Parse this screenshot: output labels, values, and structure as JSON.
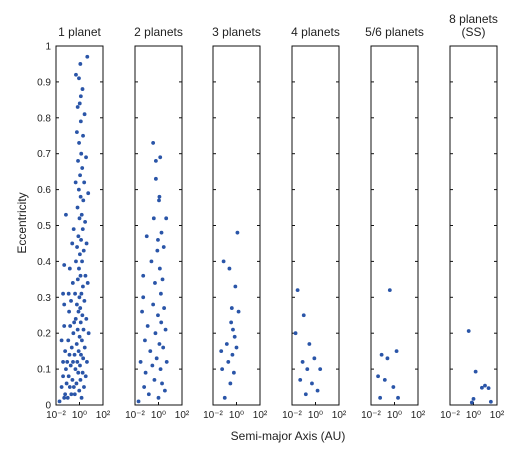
{
  "chart_data": {
    "type": "scatter",
    "ylabel": "Eccentricity",
    "xlabel": "Semi-major Axis (AU)",
    "x_scale": "log",
    "xlim": [
      0.01,
      100
    ],
    "ylim": [
      0,
      1
    ],
    "x_tick_labels": [
      "10⁻²",
      "10⁰",
      "10²"
    ],
    "y_ticks": [
      0,
      0.1,
      0.2,
      0.3,
      0.4,
      0.5,
      0.6,
      0.7,
      0.8,
      0.9,
      1
    ],
    "y_tick_labels": [
      "0",
      "0.1",
      "0.2",
      "0.3",
      "0.4",
      "0.5",
      "0.6",
      "0.7",
      "0.8",
      "0.9",
      "1"
    ],
    "marker_color": "#2a55a8",
    "panels": [
      {
        "title": [
          "1 planet"
        ],
        "points": [
          [
            0.02,
            0.01
          ],
          [
            0.03,
            0.05
          ],
          [
            0.04,
            0.08
          ],
          [
            0.05,
            0.02
          ],
          [
            0.04,
            0.12
          ],
          [
            0.03,
            0.18
          ],
          [
            0.05,
            0.22
          ],
          [
            0.06,
            0.03
          ],
          [
            0.07,
            0.1
          ],
          [
            0.05,
            0.28
          ],
          [
            0.04,
            0.31
          ],
          [
            0.06,
            0.15
          ],
          [
            0.08,
            0.06
          ],
          [
            0.09,
            0.12
          ],
          [
            0.05,
            0.39
          ],
          [
            0.07,
            0.53
          ],
          [
            0.1,
            0.02
          ],
          [
            0.12,
            0.08
          ],
          [
            0.11,
            0.18
          ],
          [
            0.13,
            0.26
          ],
          [
            0.12,
            0.31
          ],
          [
            0.15,
            0.05
          ],
          [
            0.14,
            0.14
          ],
          [
            0.16,
            0.22
          ],
          [
            0.15,
            0.38
          ],
          [
            0.18,
            0.11
          ],
          [
            0.2,
            0.03
          ],
          [
            0.19,
            0.29
          ],
          [
            0.22,
            0.16
          ],
          [
            0.25,
            0.07
          ],
          [
            0.24,
            0.45
          ],
          [
            0.28,
            0.12
          ],
          [
            0.3,
            0.2
          ],
          [
            0.27,
            0.34
          ],
          [
            0.33,
            0.05
          ],
          [
            0.35,
            0.23
          ],
          [
            0.32,
            0.49
          ],
          [
            0.38,
            0.14
          ],
          [
            0.4,
            0.03
          ],
          [
            0.42,
            0.31
          ],
          [
            0.45,
            0.1
          ],
          [
            0.48,
            0.24
          ],
          [
            0.5,
            0.4
          ],
          [
            0.47,
            0.62
          ],
          [
            0.55,
            0.06
          ],
          [
            0.58,
            0.17
          ],
          [
            0.6,
            0.28
          ],
          [
            0.62,
            0.44
          ],
          [
            0.65,
            0.12
          ],
          [
            0.68,
            0.55
          ],
          [
            0.7,
            0.21
          ],
          [
            0.72,
            0.35
          ],
          [
            0.75,
            0.68
          ],
          [
            0.78,
            0.09
          ],
          [
            0.8,
            0.47
          ],
          [
            0.82,
            0.26
          ],
          [
            0.85,
            0.15
          ],
          [
            0.88,
            0.6
          ],
          [
            0.9,
            0.38
          ],
          [
            0.92,
            0.73
          ],
          [
            0.95,
            0.04
          ],
          [
            0.98,
            0.3
          ],
          [
            1.0,
            0.52
          ],
          [
            1.02,
            0.19
          ],
          [
            1.05,
            0.84
          ],
          [
            1.08,
            0.42
          ],
          [
            1.1,
            0.11
          ],
          [
            1.12,
            0.64
          ],
          [
            1.15,
            0.27
          ],
          [
            1.18,
            0.95
          ],
          [
            1.2,
            0.07
          ],
          [
            1.22,
            0.36
          ],
          [
            1.25,
            0.58
          ],
          [
            1.28,
            0.23
          ],
          [
            1.3,
            0.79
          ],
          [
            1.33,
            0.14
          ],
          [
            1.36,
            0.46
          ],
          [
            1.4,
            0.7
          ],
          [
            1.45,
            0.31
          ],
          [
            1.5,
            0.02
          ],
          [
            1.55,
            0.53
          ],
          [
            1.6,
            0.18
          ],
          [
            1.65,
            0.4
          ],
          [
            1.7,
            0.66
          ],
          [
            1.75,
            0.25
          ],
          [
            1.8,
            0.88
          ],
          [
            1.85,
            0.09
          ],
          [
            1.9,
            0.49
          ],
          [
            1.95,
            0.33
          ],
          [
            2.0,
            0.75
          ],
          [
            2.05,
            0.13
          ],
          [
            2.1,
            0.57
          ],
          [
            2.2,
            0.21
          ],
          [
            2.3,
            0.43
          ],
          [
            2.4,
            0.05
          ],
          [
            2.5,
            0.62
          ],
          [
            2.6,
            0.29
          ],
          [
            2.7,
            0.81
          ],
          [
            2.8,
            0.16
          ],
          [
            3.0,
            0.51
          ],
          [
            3.2,
            0.36
          ],
          [
            3.4,
            0.08
          ],
          [
            3.6,
            0.69
          ],
          [
            3.8,
            0.24
          ],
          [
            4.0,
            0.45
          ],
          [
            4.3,
            0.12
          ],
          [
            4.6,
            0.97
          ],
          [
            5.0,
            0.34
          ],
          [
            5.5,
            0.59
          ],
          [
            6.0,
            0.2
          ],
          [
            0.5,
            0.92
          ],
          [
            0.7,
            0.83
          ],
          [
            0.9,
            0.91
          ],
          [
            1.3,
            0.86
          ],
          [
            0.6,
            0.76
          ]
        ]
      },
      {
        "title": [
          "2 planets"
        ],
        "points": [
          [
            0.02,
            0.01
          ],
          [
            0.03,
            0.12
          ],
          [
            0.04,
            0.26
          ],
          [
            0.05,
            0.36
          ],
          [
            0.06,
            0.05
          ],
          [
            0.07,
            0.18
          ],
          [
            0.05,
            0.3
          ],
          [
            0.08,
            0.09
          ],
          [
            0.1,
            0.47
          ],
          [
            0.12,
            0.22
          ],
          [
            0.15,
            0.03
          ],
          [
            0.2,
            0.15
          ],
          [
            0.25,
            0.4
          ],
          [
            0.3,
            0.11
          ],
          [
            0.35,
            0.28
          ],
          [
            0.4,
            0.52
          ],
          [
            0.45,
            0.07
          ],
          [
            0.5,
            0.34
          ],
          [
            0.55,
            0.2
          ],
          [
            0.6,
            0.63
          ],
          [
            0.7,
            0.13
          ],
          [
            0.8,
            0.43
          ],
          [
            0.9,
            0.25
          ],
          [
            1.0,
            0.02
          ],
          [
            1.1,
            0.57
          ],
          [
            1.2,
            0.17
          ],
          [
            1.3,
            0.38
          ],
          [
            1.4,
            0.69
          ],
          [
            1.5,
            0.1
          ],
          [
            1.6,
            0.31
          ],
          [
            1.7,
            0.23
          ],
          [
            1.8,
            0.48
          ],
          [
            2.0,
            0.06
          ],
          [
            2.2,
            0.35
          ],
          [
            2.5,
            0.16
          ],
          [
            2.8,
            0.44
          ],
          [
            3.0,
            0.27
          ],
          [
            3.5,
            0.04
          ],
          [
            4.0,
            0.21
          ],
          [
            4.5,
            0.52
          ],
          [
            5.0,
            0.12
          ],
          [
            0.35,
            0.73
          ],
          [
            0.6,
            0.68
          ],
          [
            0.9,
            0.46
          ],
          [
            1.2,
            0.58
          ]
        ]
      },
      {
        "title": [
          "3 planets"
        ],
        "points": [
          [
            0.05,
            0.15
          ],
          [
            0.06,
            0.1
          ],
          [
            0.08,
            0.4
          ],
          [
            0.1,
            0.02
          ],
          [
            0.15,
            0.17
          ],
          [
            0.2,
            0.12
          ],
          [
            0.25,
            0.38
          ],
          [
            0.3,
            0.06
          ],
          [
            0.4,
            0.27
          ],
          [
            0.5,
            0.21
          ],
          [
            0.6,
            0.09
          ],
          [
            0.8,
            0.33
          ],
          [
            1.0,
            0.16
          ],
          [
            1.2,
            0.48
          ],
          [
            1.5,
            0.26
          ],
          [
            0.7,
            0.19
          ],
          [
            0.35,
            0.23
          ],
          [
            0.45,
            0.14
          ]
        ]
      },
      {
        "title": [
          "4 planets"
        ],
        "points": [
          [
            0.02,
            0.2
          ],
          [
            0.03,
            0.32
          ],
          [
            0.05,
            0.07
          ],
          [
            0.08,
            0.12
          ],
          [
            0.1,
            0.25
          ],
          [
            0.15,
            0.03
          ],
          [
            0.2,
            0.1
          ],
          [
            0.3,
            0.17
          ],
          [
            0.5,
            0.06
          ],
          [
            0.8,
            0.13
          ],
          [
            1.5,
            0.04
          ],
          [
            2.5,
            0.1
          ]
        ]
      },
      {
        "title": [
          "5/6 planets"
        ],
        "points": [
          [
            0.04,
            0.08
          ],
          [
            0.06,
            0.02
          ],
          [
            0.08,
            0.14
          ],
          [
            0.15,
            0.07
          ],
          [
            0.25,
            0.13
          ],
          [
            0.4,
            0.32
          ],
          [
            0.8,
            0.05
          ],
          [
            1.5,
            0.15
          ],
          [
            2.0,
            0.02
          ]
        ]
      },
      {
        "title": [
          "8 planets",
          "(SS)"
        ],
        "points": [
          [
            0.39,
            0.206
          ],
          [
            0.72,
            0.007
          ],
          [
            1.0,
            0.017
          ],
          [
            1.52,
            0.093
          ],
          [
            5.2,
            0.048
          ],
          [
            9.5,
            0.054
          ],
          [
            19.2,
            0.047
          ],
          [
            30.1,
            0.009
          ]
        ]
      }
    ]
  }
}
